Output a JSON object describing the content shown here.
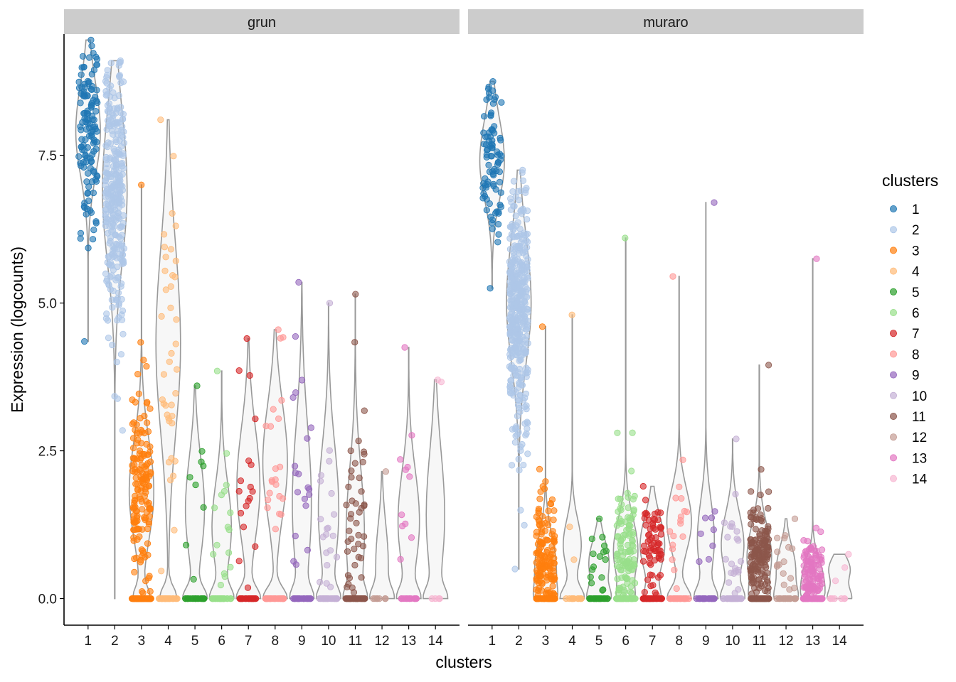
{
  "chart_data": {
    "type": "violin",
    "xlabel": "clusters",
    "ylabel": "Expression (logcounts)",
    "ylim": [
      -0.45,
      9.55
    ],
    "yticks": [
      0.0,
      2.5,
      5.0,
      7.5
    ],
    "ytick_labels": [
      "0.0",
      "2.5",
      "5.0",
      "7.5"
    ],
    "categories": [
      "1",
      "2",
      "3",
      "4",
      "5",
      "6",
      "7",
      "8",
      "9",
      "10",
      "11",
      "12",
      "13",
      "14"
    ],
    "legend": {
      "title": "clusters",
      "position": "right",
      "entries": [
        "1",
        "2",
        "3",
        "4",
        "5",
        "6",
        "7",
        "8",
        "9",
        "10",
        "11",
        "12",
        "13",
        "14"
      ]
    },
    "colors": [
      "#1f77b4",
      "#aec7e8",
      "#ff7f0e",
      "#ffbb78",
      "#2ca02c",
      "#98df8a",
      "#d62728",
      "#ff9896",
      "#9467bd",
      "#c5b0d5",
      "#8c564b",
      "#c49c94",
      "#e377c2",
      "#f7b6d2"
    ],
    "grid": false,
    "facets": [
      {
        "name": "grun",
        "clusters": [
          {
            "cluster": "1",
            "min": 4.35,
            "max": 9.45,
            "zeros": 0.0,
            "mode": 7.9,
            "n": 130,
            "sd": 0.75
          },
          {
            "cluster": "2",
            "min": 0.0,
            "max": 9.1,
            "zeros": 0.0,
            "mode": 6.9,
            "n": 300,
            "sd": 1.2
          },
          {
            "cluster": "3",
            "min": 0.0,
            "max": 7.0,
            "zeros": 0.4,
            "mode": 1.8,
            "n": 260,
            "sd": 0.8
          },
          {
            "cluster": "4",
            "min": 0.0,
            "max": 8.1,
            "zeros": 0.45,
            "mode": 4.3,
            "n": 70,
            "sd": 1.5
          },
          {
            "cluster": "5",
            "min": 0.0,
            "max": 3.6,
            "zeros": 0.7,
            "mode": 1.5,
            "n": 30,
            "sd": 0.8
          },
          {
            "cluster": "6",
            "min": 0.0,
            "max": 3.85,
            "zeros": 0.65,
            "mode": 1.2,
            "n": 45,
            "sd": 0.7
          },
          {
            "cluster": "7",
            "min": 0.0,
            "max": 4.4,
            "zeros": 0.6,
            "mode": 1.9,
            "n": 45,
            "sd": 0.9
          },
          {
            "cluster": "8",
            "min": 0.0,
            "max": 4.55,
            "zeros": 0.6,
            "mode": 2.3,
            "n": 55,
            "sd": 0.9
          },
          {
            "cluster": "9",
            "min": 0.0,
            "max": 5.35,
            "zeros": 0.55,
            "mode": 1.6,
            "n": 45,
            "sd": 1.2
          },
          {
            "cluster": "10",
            "min": 0.0,
            "max": 5.0,
            "zeros": 0.55,
            "mode": 1.5,
            "n": 45,
            "sd": 1.0
          },
          {
            "cluster": "11",
            "min": 0.0,
            "max": 5.15,
            "zeros": 0.5,
            "mode": 1.1,
            "n": 85,
            "sd": 1.0
          },
          {
            "cluster": "12",
            "min": 0.0,
            "max": 2.15,
            "zeros": 0.85,
            "mode": 0.6,
            "n": 8,
            "sd": 0.6
          },
          {
            "cluster": "13",
            "min": 0.0,
            "max": 4.25,
            "zeros": 0.55,
            "mode": 1.3,
            "n": 25,
            "sd": 0.8
          },
          {
            "cluster": "14",
            "min": 0.0,
            "max": 3.7,
            "zeros": 0.6,
            "mode": 1.4,
            "n": 6,
            "sd": 1.0
          }
        ]
      },
      {
        "name": "muraro",
        "clusters": [
          {
            "cluster": "1",
            "min": 5.25,
            "max": 8.75,
            "zeros": 0.0,
            "mode": 7.4,
            "n": 90,
            "sd": 0.65
          },
          {
            "cluster": "2",
            "min": 0.5,
            "max": 7.25,
            "zeros": 0.0,
            "mode": 5.0,
            "n": 380,
            "sd": 1.0
          },
          {
            "cluster": "3",
            "min": 0.0,
            "max": 4.6,
            "zeros": 0.3,
            "mode": 0.5,
            "n": 200,
            "sd": 0.5
          },
          {
            "cluster": "4",
            "min": 0.0,
            "max": 4.8,
            "zeros": 0.8,
            "mode": 0.9,
            "n": 15,
            "sd": 0.4
          },
          {
            "cluster": "5",
            "min": 0.0,
            "max": 1.35,
            "zeros": 0.6,
            "mode": 0.6,
            "n": 40,
            "sd": 0.35
          },
          {
            "cluster": "6",
            "min": 0.0,
            "max": 6.1,
            "zeros": 0.3,
            "mode": 0.8,
            "n": 160,
            "sd": 0.5
          },
          {
            "cluster": "7",
            "min": 0.0,
            "max": 1.9,
            "zeros": 0.35,
            "mode": 0.9,
            "n": 100,
            "sd": 0.45
          },
          {
            "cluster": "8",
            "min": 0.0,
            "max": 5.45,
            "zeros": 0.6,
            "mode": 1.3,
            "n": 45,
            "sd": 0.5
          },
          {
            "cluster": "9",
            "min": 0.0,
            "max": 6.7,
            "zeros": 0.75,
            "mode": 1.0,
            "n": 35,
            "sd": 0.6
          },
          {
            "cluster": "10",
            "min": 0.0,
            "max": 2.7,
            "zeros": 0.55,
            "mode": 0.9,
            "n": 50,
            "sd": 0.5
          },
          {
            "cluster": "11",
            "min": 0.0,
            "max": 3.95,
            "zeros": 0.3,
            "mode": 0.7,
            "n": 220,
            "sd": 0.5
          },
          {
            "cluster": "12",
            "min": 0.0,
            "max": 1.35,
            "zeros": 0.55,
            "mode": 0.5,
            "n": 35,
            "sd": 0.35
          },
          {
            "cluster": "13",
            "min": 0.0,
            "max": 5.75,
            "zeros": 0.35,
            "mode": 0.35,
            "n": 160,
            "sd": 0.3
          },
          {
            "cluster": "14",
            "min": 0.0,
            "max": 0.75,
            "zeros": 0.7,
            "mode": 0.5,
            "n": 10,
            "sd": 0.2
          }
        ]
      }
    ]
  }
}
